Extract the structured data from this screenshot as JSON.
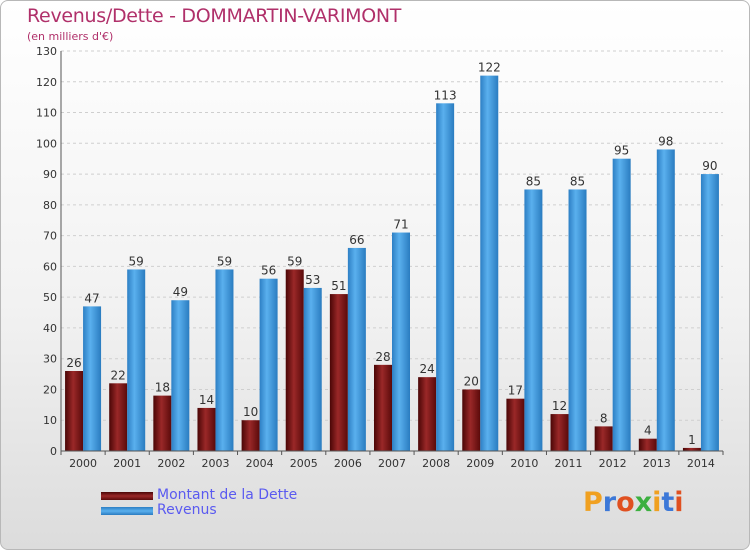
{
  "title": "Revenus/Dette - DOMMARTIN-VARIMONT",
  "subtitle": "(en milliers d'€)",
  "colors": {
    "dette": "#7a1414",
    "revenus": "#3c9be0",
    "title": "#b0306a",
    "legend_text": "#5a5af0"
  },
  "legend": [
    {
      "label": "Montant de la Dette",
      "color": "#7a1414"
    },
    {
      "label": "Revenus",
      "color": "#3c9be0"
    }
  ],
  "logo": {
    "text": "Proxiti",
    "colors": [
      "#f0a020",
      "#3c78d8",
      "#e05020",
      "#3cb040",
      "#f0a020",
      "#3c78d8",
      "#e05020"
    ]
  },
  "chart_data": {
    "type": "bar",
    "categories": [
      "2000",
      "2001",
      "2002",
      "2003",
      "2004",
      "2005",
      "2006",
      "2007",
      "2008",
      "2009",
      "2010",
      "2011",
      "2012",
      "2013",
      "2014"
    ],
    "series": [
      {
        "name": "Montant de la Dette",
        "values": [
          26,
          22,
          18,
          14,
          10,
          59,
          51,
          28,
          24,
          20,
          17,
          12,
          8,
          4,
          1
        ]
      },
      {
        "name": "Revenus",
        "values": [
          47,
          59,
          49,
          59,
          56,
          53,
          66,
          71,
          113,
          122,
          85,
          85,
          95,
          98,
          90
        ]
      }
    ],
    "ylim": [
      0,
      130
    ],
    "yticks": [
      0,
      10,
      20,
      30,
      40,
      50,
      60,
      70,
      80,
      90,
      100,
      110,
      120,
      130
    ],
    "grid": true,
    "legend_position": "bottom-left"
  }
}
